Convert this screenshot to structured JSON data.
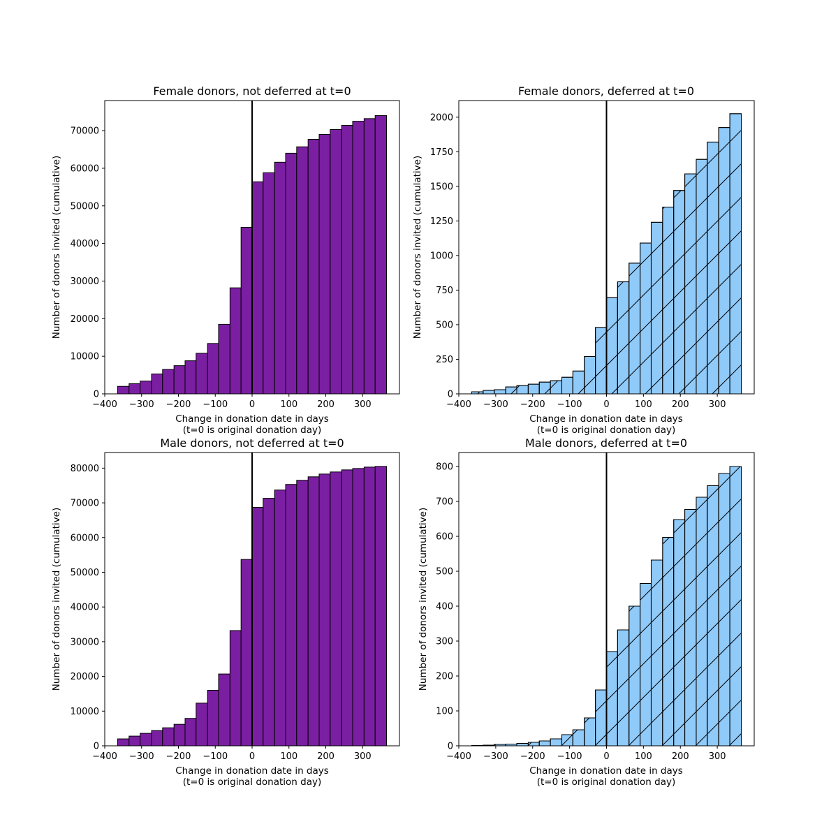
{
  "chart_data": [
    {
      "type": "bar",
      "title": "Female donors, not deferred at t=0",
      "xlabel": "Change in donation date in days",
      "xlabel_line2": "(t=0 is original donation day)",
      "ylabel": "Number of donors invited (cumulative)",
      "xlim": [
        -400,
        400
      ],
      "ylim": [
        0,
        78000
      ],
      "xticks": [
        -400,
        -300,
        -200,
        -100,
        0,
        100,
        200,
        300
      ],
      "xtick_labels": [
        "−400",
        "−300",
        "−200",
        "−100",
        "0",
        "100",
        "200",
        "300"
      ],
      "yticks": [
        0,
        10000,
        20000,
        30000,
        40000,
        50000,
        60000,
        70000
      ],
      "ytick_labels": [
        "0",
        "10000",
        "20000",
        "30000",
        "40000",
        "50000",
        "60000",
        "70000"
      ],
      "bin_edges": [
        -365,
        -334,
        -304,
        -273,
        -243,
        -212,
        -182,
        -152,
        -121,
        -91,
        -60,
        -30,
        0,
        30,
        61,
        91,
        121,
        152,
        182,
        212,
        243,
        273,
        304,
        334,
        365
      ],
      "values": [
        2000,
        2700,
        3400,
        5300,
        6500,
        7500,
        8800,
        10800,
        13400,
        18500,
        28200,
        44300,
        56400,
        58800,
        61600,
        64000,
        65700,
        67700,
        69000,
        70300,
        71400,
        72500,
        73200,
        74000
      ],
      "bar_color": "#7b1fa2",
      "edge_color": "#000000",
      "hatch": false,
      "vline_x": 0,
      "grid": false
    },
    {
      "type": "bar",
      "title": "Female donors, deferred at t=0",
      "xlabel": "Change in donation date in days",
      "xlabel_line2": "(t=0 is original donation day)",
      "ylabel": "Number of donors invited (cumulative)",
      "xlim": [
        -400,
        400
      ],
      "ylim": [
        0,
        2120
      ],
      "xticks": [
        -400,
        -300,
        -200,
        -100,
        0,
        100,
        200,
        300
      ],
      "xtick_labels": [
        "−400",
        "−300",
        "−200",
        "−100",
        "0",
        "100",
        "200",
        "300"
      ],
      "yticks": [
        0,
        250,
        500,
        750,
        1000,
        1250,
        1500,
        1750,
        2000
      ],
      "ytick_labels": [
        "0",
        "250",
        "500",
        "750",
        "1000",
        "1250",
        "1500",
        "1750",
        "2000"
      ],
      "bin_edges": [
        -365,
        -334,
        -304,
        -273,
        -243,
        -212,
        -182,
        -152,
        -121,
        -91,
        -60,
        -30,
        0,
        30,
        61,
        91,
        121,
        152,
        182,
        212,
        243,
        273,
        304,
        334,
        365
      ],
      "values": [
        15,
        25,
        30,
        50,
        60,
        70,
        85,
        95,
        120,
        165,
        270,
        480,
        695,
        810,
        945,
        1090,
        1240,
        1350,
        1470,
        1590,
        1695,
        1820,
        1925,
        2025
      ],
      "bar_color": "#90caf9",
      "edge_color": "#000000",
      "hatch": true,
      "vline_x": 0,
      "grid": false
    },
    {
      "type": "bar",
      "title": "Male donors, not deferred at t=0",
      "xlabel": "Change in donation date in days",
      "xlabel_line2": "(t=0 is original donation day)",
      "ylabel": "Number of donors invited (cumulative)",
      "xlim": [
        -400,
        400
      ],
      "ylim": [
        0,
        84500
      ],
      "xticks": [
        -400,
        -300,
        -200,
        -100,
        0,
        100,
        200,
        300
      ],
      "xtick_labels": [
        "−400",
        "−300",
        "−200",
        "−100",
        "0",
        "100",
        "200",
        "300"
      ],
      "yticks": [
        0,
        10000,
        20000,
        30000,
        40000,
        50000,
        60000,
        70000,
        80000
      ],
      "ytick_labels": [
        "0",
        "10000",
        "20000",
        "30000",
        "40000",
        "50000",
        "60000",
        "70000",
        "80000"
      ],
      "bin_edges": [
        -365,
        -334,
        -304,
        -273,
        -243,
        -212,
        -182,
        -152,
        -121,
        -91,
        -60,
        -30,
        0,
        30,
        61,
        91,
        121,
        152,
        182,
        212,
        243,
        273,
        304,
        334,
        365
      ],
      "values": [
        2000,
        2800,
        3600,
        4400,
        5200,
        6200,
        7900,
        12300,
        16000,
        20700,
        33200,
        53700,
        68700,
        71300,
        73700,
        75300,
        76500,
        77500,
        78300,
        78900,
        79500,
        79900,
        80300,
        80500
      ],
      "bar_color": "#7b1fa2",
      "edge_color": "#000000",
      "hatch": false,
      "vline_x": 0,
      "grid": false
    },
    {
      "type": "bar",
      "title": "Male donors, deferred at t=0",
      "xlabel": "Change in donation date in days",
      "xlabel_line2": "(t=0 is original donation day)",
      "ylabel": "Number of donors invited (cumulative)",
      "xlim": [
        -400,
        400
      ],
      "ylim": [
        0,
        840
      ],
      "xticks": [
        -400,
        -300,
        -200,
        -100,
        0,
        100,
        200,
        300
      ],
      "xtick_labels": [
        "−400",
        "−300",
        "−200",
        "−100",
        "0",
        "100",
        "200",
        "300"
      ],
      "yticks": [
        0,
        100,
        200,
        300,
        400,
        500,
        600,
        700,
        800
      ],
      "ytick_labels": [
        "0",
        "100",
        "200",
        "300",
        "400",
        "500",
        "600",
        "700",
        "800"
      ],
      "bin_edges": [
        -365,
        -334,
        -304,
        -273,
        -243,
        -212,
        -182,
        -152,
        -121,
        -91,
        -60,
        -30,
        0,
        30,
        61,
        91,
        121,
        152,
        182,
        212,
        243,
        273,
        304,
        334,
        365
      ],
      "values": [
        1,
        2,
        4,
        5,
        7,
        10,
        14,
        20,
        32,
        46,
        80,
        160,
        270,
        332,
        400,
        465,
        532,
        597,
        648,
        677,
        712,
        745,
        780,
        800
      ],
      "bar_color": "#90caf9",
      "edge_color": "#000000",
      "hatch": true,
      "vline_x": 0,
      "grid": false
    }
  ]
}
